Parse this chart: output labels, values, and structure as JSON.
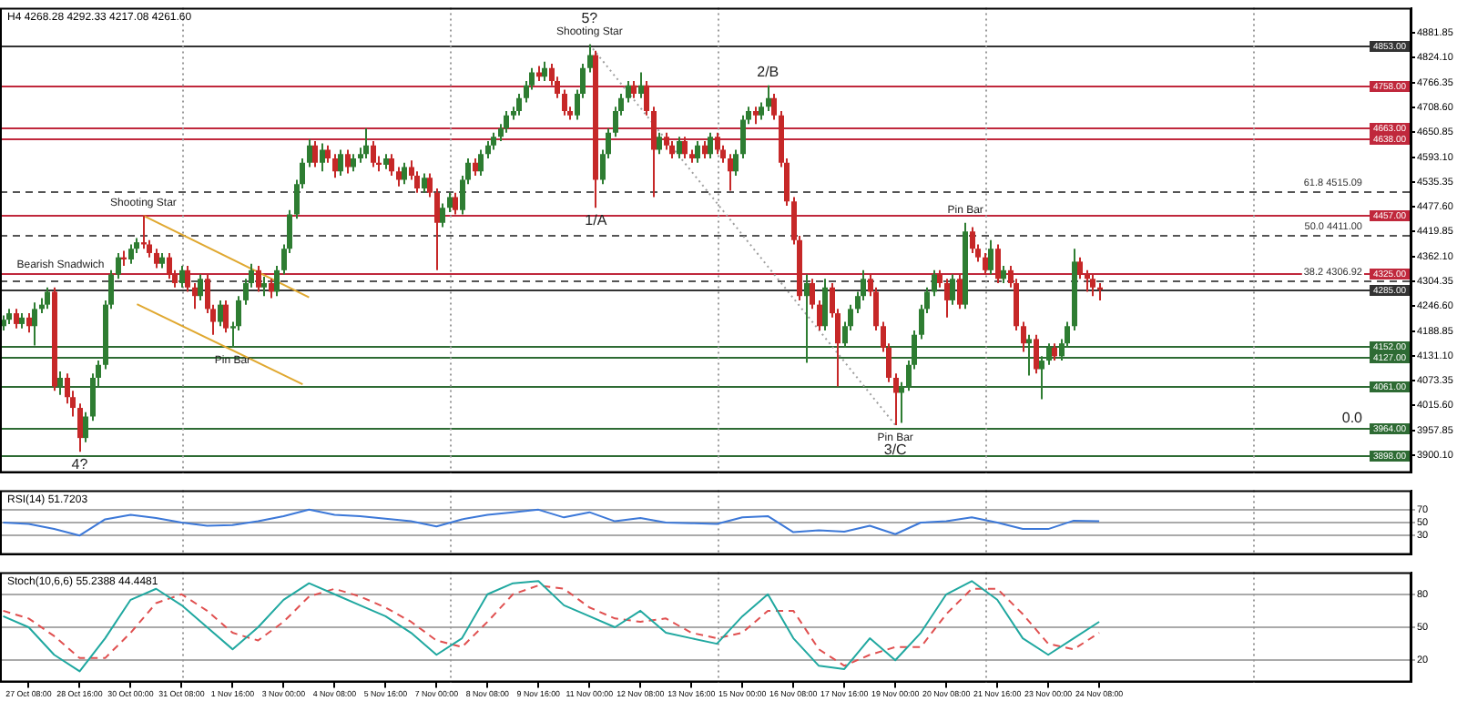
{
  "chart_data": [
    {
      "type": "candlestick",
      "title": "H4 4268.28 4292.33 4217.08 4261.60",
      "x": [
        "--10-26T16:00",
        "--10-26T20:00",
        "--10-27T00:00",
        "--10-27T04:00",
        "--10-27T08:00",
        "--10-27T12:00",
        "--10-27T16:00",
        "--10-27T20:00",
        "--10-28T00:00",
        "--10-28T04:00",
        "--10-28T08:00",
        "--10-28T12:00",
        "--10-28T16:00",
        "--10-28T20:00",
        "--10-29T00:00",
        "--10-29T04:00",
        "--10-29T08:00",
        "--10-29T12:00",
        "--10-29T16:00",
        "--10-29T20:00",
        "--10-30T00:00",
        "--10-30T04:00",
        "--10-30T08:00",
        "--10-30T12:00",
        "--10-30T16:00",
        "--10-30T20:00",
        "--10-31T00:00",
        "--10-31T04:00",
        "--10-31T08:00",
        "--10-31T12:00",
        "--10-31T16:00",
        "--10-31T20:00",
        "--11-01T00:00",
        "--11-01T04:00",
        "--11-01T08:00",
        "--11-01T12:00",
        "--11-01T16:00",
        "--11-01T20:00",
        "--11-02T00:00",
        "--11-02T04:00",
        "--11-02T08:00",
        "--11-02T12:00",
        "--11-02T16:00",
        "--11-02T20:00",
        "--11-03T00:00",
        "--11-03T04:00",
        "--11-03T08:00",
        "--11-03T12:00",
        "--11-03T16:00",
        "--11-03T20:00",
        "--11-04T00:00",
        "--11-04T04:00",
        "--11-04T08:00",
        "--11-04T12:00",
        "--11-04T16:00",
        "--11-04T20:00",
        "--11-05T00:00",
        "--11-05T04:00",
        "--11-05T08:00",
        "--11-05T12:00",
        "--11-05T16:00",
        "--11-05T20:00",
        "--11-06T00:00",
        "--11-06T04:00",
        "--11-06T08:00",
        "--11-06T12:00",
        "--11-06T16:00",
        "--11-06T20:00",
        "--11-07T00:00",
        "--11-07T04:00",
        "--11-07T08:00",
        "--11-07T12:00",
        "--11-07T16:00",
        "--11-07T20:00",
        "--11-08T00:00",
        "--11-08T04:00",
        "--11-08T08:00",
        "--11-08T12:00",
        "--11-08T16:00",
        "--11-08T20:00",
        "--11-09T00:00",
        "--11-09T04:00",
        "--11-09T08:00",
        "--11-09T12:00",
        "--11-09T16:00",
        "--11-09T20:00",
        "--11-10T00:00",
        "--11-10T04:00",
        "--11-10T08:00",
        "--11-10T12:00",
        "--11-10T16:00",
        "--11-10T20:00",
        "--11-11T00:00",
        "--11-11T04:00",
        "--11-11T08:00",
        "--11-11T12:00",
        "--11-11T16:00",
        "--11-11T20:00",
        "--11-12T00:00",
        "--11-12T04:00",
        "--11-12T08:00",
        "--11-12T12:00",
        "--11-12T16:00",
        "--11-12T20:00",
        "--11-13T00:00",
        "--11-13T04:00",
        "--11-13T08:00",
        "--11-13T12:00",
        "--11-13T16:00",
        "--11-13T20:00",
        "--11-14T00:00",
        "--11-14T04:00",
        "--11-14T08:00",
        "--11-14T12:00",
        "--11-14T16:00",
        "--11-14T20:00",
        "--11-15T00:00",
        "--11-15T04:00",
        "--11-15T08:00",
        "--11-15T12:00",
        "--11-15T16:00",
        "--11-15T20:00",
        "--11-16T00:00",
        "--11-16T04:00",
        "--11-16T08:00",
        "--11-16T12:00",
        "--11-16T16:00",
        "--11-16T20:00",
        "--11-17T00:00",
        "--11-17T04:00",
        "--11-17T08:00",
        "--11-17T12:00",
        "--11-17T16:00",
        "--11-17T20:00",
        "--11-18T00:00",
        "--11-18T04:00",
        "--11-18T08:00",
        "--11-18T12:00",
        "--11-18T16:00",
        "--11-18T20:00",
        "--11-19T00:00",
        "--11-19T04:00",
        "--11-19T08:00",
        "--11-19T12:00",
        "--11-19T16:00",
        "--11-19T20:00",
        "--11-20T00:00",
        "--11-20T04:00",
        "--11-20T08:00",
        "--11-20T12:00",
        "--11-20T16:00",
        "--11-20T20:00",
        "--11-21T00:00",
        "--11-21T04:00",
        "--11-21T08:00",
        "--11-21T12:00",
        "--11-21T16:00",
        "--11-21T20:00",
        "--11-22T00:00",
        "--11-22T04:00",
        "--11-22T08:00",
        "--11-22T12:00",
        "--11-22T16:00",
        "--11-22T20:00",
        "--11-23T00:00",
        "--11-23T04:00",
        "--11-23T08:00",
        "--11-23T12:00",
        "--11-23T16:00",
        "--11-23T20:00",
        "--11-24T00:00",
        "--11-24T04:00",
        "--11-24T08:00"
      ],
      "ohlc": [
        [
          4200,
          4225,
          4190,
          4215
        ],
        [
          4215,
          4240,
          4205,
          4230
        ],
        [
          4230,
          4240,
          4195,
          4205
        ],
        [
          4205,
          4230,
          4195,
          4220
        ],
        [
          4220,
          4230,
          4185,
          4200
        ],
        [
          4200,
          4255,
          4155,
          4240
        ],
        [
          4240,
          4265,
          4230,
          4250
        ],
        [
          4250,
          4290,
          4240,
          4280
        ],
        [
          4280,
          4290,
          4050,
          4060
        ],
        [
          4060,
          4095,
          4040,
          4080
        ],
        [
          4080,
          4090,
          4020,
          4035
        ],
        [
          4035,
          4050,
          3990,
          4010
        ],
        [
          4010,
          4020,
          3908,
          3940
        ],
        [
          3940,
          4000,
          3930,
          3990
        ],
        [
          3990,
          4090,
          3980,
          4080
        ],
        [
          4080,
          4120,
          4060,
          4110
        ],
        [
          4110,
          4260,
          4100,
          4250
        ],
        [
          4250,
          4330,
          4240,
          4320
        ],
        [
          4320,
          4370,
          4310,
          4360
        ],
        [
          4360,
          4375,
          4340,
          4355
        ],
        [
          4355,
          4390,
          4345,
          4380
        ],
        [
          4380,
          4405,
          4370,
          4395
        ],
        [
          4395,
          4457,
          4380,
          4390
        ],
        [
          4390,
          4400,
          4360,
          4370
        ],
        [
          4370,
          4380,
          4335,
          4345
        ],
        [
          4345,
          4370,
          4335,
          4360
        ],
        [
          4360,
          4370,
          4310,
          4320
        ],
        [
          4320,
          4330,
          4290,
          4300
        ],
        [
          4300,
          4340,
          4290,
          4330
        ],
        [
          4330,
          4340,
          4280,
          4290
        ],
        [
          4290,
          4300,
          4240,
          4270
        ],
        [
          4270,
          4320,
          4260,
          4310
        ],
        [
          4310,
          4320,
          4230,
          4240
        ],
        [
          4240,
          4250,
          4180,
          4210
        ],
        [
          4210,
          4260,
          4200,
          4250
        ],
        [
          4250,
          4260,
          4185,
          4195
        ],
        [
          4195,
          4210,
          4150,
          4200
        ],
        [
          4200,
          4270,
          4190,
          4260
        ],
        [
          4260,
          4310,
          4250,
          4300
        ],
        [
          4300,
          4345,
          4290,
          4330
        ],
        [
          4330,
          4340,
          4280,
          4290
        ],
        [
          4290,
          4315,
          4270,
          4300
        ],
        [
          4300,
          4310,
          4265,
          4280
        ],
        [
          4280,
          4340,
          4270,
          4330
        ],
        [
          4330,
          4390,
          4320,
          4380
        ],
        [
          4380,
          4470,
          4370,
          4460
        ],
        [
          4460,
          4540,
          4450,
          4530
        ],
        [
          4530,
          4590,
          4520,
          4580
        ],
        [
          4580,
          4635,
          4570,
          4620
        ],
        [
          4620,
          4630,
          4570,
          4580
        ],
        [
          4580,
          4625,
          4560,
          4610
        ],
        [
          4610,
          4620,
          4580,
          4590
        ],
        [
          4590,
          4600,
          4545,
          4560
        ],
        [
          4560,
          4610,
          4550,
          4600
        ],
        [
          4600,
          4610,
          4555,
          4570
        ],
        [
          4570,
          4600,
          4560,
          4590
        ],
        [
          4590,
          4615,
          4580,
          4600
        ],
        [
          4600,
          4660,
          4590,
          4620
        ],
        [
          4620,
          4630,
          4570,
          4580
        ],
        [
          4580,
          4595,
          4560,
          4575
        ],
        [
          4575,
          4600,
          4565,
          4590
        ],
        [
          4590,
          4600,
          4550,
          4560
        ],
        [
          4560,
          4570,
          4525,
          4540
        ],
        [
          4540,
          4580,
          4530,
          4570
        ],
        [
          4570,
          4585,
          4540,
          4550
        ],
        [
          4550,
          4560,
          4510,
          4520
        ],
        [
          4520,
          4555,
          4510,
          4545
        ],
        [
          4545,
          4555,
          4500,
          4510
        ],
        [
          4510,
          4520,
          4330,
          4440
        ],
        [
          4440,
          4485,
          4430,
          4475
        ],
        [
          4475,
          4510,
          4465,
          4500
        ],
        [
          4500,
          4510,
          4460,
          4470
        ],
        [
          4470,
          4550,
          4460,
          4540
        ],
        [
          4540,
          4590,
          4530,
          4580
        ],
        [
          4580,
          4590,
          4550,
          4560
        ],
        [
          4560,
          4610,
          4550,
          4600
        ],
        [
          4600,
          4630,
          4590,
          4620
        ],
        [
          4620,
          4650,
          4610,
          4640
        ],
        [
          4640,
          4670,
          4630,
          4660
        ],
        [
          4660,
          4700,
          4650,
          4690
        ],
        [
          4690,
          4710,
          4680,
          4700
        ],
        [
          4700,
          4740,
          4690,
          4730
        ],
        [
          4730,
          4770,
          4720,
          4760
        ],
        [
          4760,
          4800,
          4750,
          4790
        ],
        [
          4790,
          4805,
          4770,
          4780
        ],
        [
          4780,
          4815,
          4770,
          4800
        ],
        [
          4800,
          4810,
          4760,
          4770
        ],
        [
          4770,
          4780,
          4730,
          4740
        ],
        [
          4740,
          4750,
          4690,
          4700
        ],
        [
          4700,
          4710,
          4680,
          4690
        ],
        [
          4690,
          4750,
          4680,
          4740
        ],
        [
          4740,
          4810,
          4730,
          4800
        ],
        [
          4800,
          4855,
          4790,
          4830
        ],
        [
          4830,
          4840,
          4475,
          4540
        ],
        [
          4540,
          4610,
          4530,
          4600
        ],
        [
          4600,
          4660,
          4590,
          4650
        ],
        [
          4650,
          4710,
          4640,
          4700
        ],
        [
          4700,
          4740,
          4690,
          4730
        ],
        [
          4730,
          4770,
          4720,
          4760
        ],
        [
          4760,
          4770,
          4730,
          4740
        ],
        [
          4740,
          4790,
          4730,
          4760
        ],
        [
          4760,
          4770,
          4690,
          4700
        ],
        [
          4700,
          4710,
          4500,
          4610
        ],
        [
          4610,
          4650,
          4600,
          4640
        ],
        [
          4640,
          4650,
          4610,
          4620
        ],
        [
          4620,
          4630,
          4590,
          4600
        ],
        [
          4600,
          4640,
          4590,
          4630
        ],
        [
          4630,
          4640,
          4590,
          4600
        ],
        [
          4600,
          4610,
          4580,
          4590
        ],
        [
          4590,
          4630,
          4580,
          4620
        ],
        [
          4620,
          4630,
          4590,
          4600
        ],
        [
          4600,
          4650,
          4590,
          4640
        ],
        [
          4640,
          4650,
          4600,
          4610
        ],
        [
          4610,
          4620,
          4580,
          4590
        ],
        [
          4590,
          4600,
          4515,
          4560
        ],
        [
          4560,
          4610,
          4550,
          4600
        ],
        [
          4600,
          4690,
          4590,
          4680
        ],
        [
          4680,
          4710,
          4670,
          4700
        ],
        [
          4700,
          4710,
          4670,
          4690
        ],
        [
          4690,
          4720,
          4680,
          4710
        ],
        [
          4710,
          4760,
          4700,
          4730
        ],
        [
          4730,
          4740,
          4680,
          4690
        ],
        [
          4690,
          4700,
          4570,
          4580
        ],
        [
          4580,
          4590,
          4480,
          4490
        ],
        [
          4490,
          4500,
          4390,
          4400
        ],
        [
          4400,
          4410,
          4260,
          4270
        ],
        [
          4270,
          4320,
          4115,
          4300
        ],
        [
          4300,
          4310,
          4240,
          4250
        ],
        [
          4250,
          4260,
          4190,
          4200
        ],
        [
          4200,
          4310,
          4190,
          4290
        ],
        [
          4290,
          4300,
          4220,
          4230
        ],
        [
          4230,
          4240,
          4060,
          4160
        ],
        [
          4160,
          4210,
          4150,
          4200
        ],
        [
          4200,
          4250,
          4190,
          4240
        ],
        [
          4240,
          4280,
          4230,
          4270
        ],
        [
          4270,
          4330,
          4260,
          4310
        ],
        [
          4310,
          4320,
          4270,
          4280
        ],
        [
          4280,
          4290,
          4190,
          4200
        ],
        [
          4200,
          4210,
          4140,
          4150
        ],
        [
          4150,
          4160,
          4070,
          4080
        ],
        [
          4080,
          4090,
          3970,
          4045
        ],
        [
          4045,
          4070,
          3975,
          4060
        ],
        [
          4060,
          4120,
          4050,
          4110
        ],
        [
          4110,
          4190,
          4100,
          4180
        ],
        [
          4180,
          4250,
          4170,
          4240
        ],
        [
          4240,
          4290,
          4230,
          4280
        ],
        [
          4280,
          4330,
          4270,
          4320
        ],
        [
          4320,
          4330,
          4290,
          4300
        ],
        [
          4300,
          4310,
          4220,
          4260
        ],
        [
          4260,
          4320,
          4250,
          4310
        ],
        [
          4310,
          4320,
          4240,
          4250
        ],
        [
          4250,
          4440,
          4240,
          4420
        ],
        [
          4420,
          4430,
          4370,
          4380
        ],
        [
          4380,
          4390,
          4350,
          4360
        ],
        [
          4360,
          4370,
          4320,
          4330
        ],
        [
          4330,
          4400,
          4320,
          4380
        ],
        [
          4380,
          4390,
          4300,
          4310
        ],
        [
          4310,
          4340,
          4300,
          4330
        ],
        [
          4330,
          4340,
          4290,
          4300
        ],
        [
          4300,
          4310,
          4190,
          4200
        ],
        [
          4200,
          4210,
          4140,
          4160
        ],
        [
          4160,
          4180,
          4085,
          4170
        ],
        [
          4170,
          4180,
          4090,
          4100
        ],
        [
          4100,
          4130,
          4030,
          4120
        ],
        [
          4120,
          4160,
          4110,
          4150
        ],
        [
          4150,
          4160,
          4120,
          4130
        ],
        [
          4130,
          4170,
          4120,
          4160
        ],
        [
          4160,
          4210,
          4150,
          4200
        ],
        [
          4200,
          4380,
          4190,
          4350
        ],
        [
          4350,
          4360,
          4310,
          4320
        ],
        [
          4320,
          4330,
          4280,
          4310
        ],
        [
          4310,
          4320,
          4270,
          4290
        ],
        [
          4290,
          4300,
          4260,
          4285
        ]
      ],
      "colors": [
        "#2e7d32",
        "#2e7d32",
        "#c62828",
        "#2e7d32",
        "#c62828",
        "#2e7d32",
        "#2e7d32",
        "#2e7d32",
        "#c62828",
        "#2e7d32",
        "#c62828",
        "#c62828",
        "#c62828",
        "#2e7d32",
        "#2e7d32",
        "#2e7d32",
        "#2e7d32",
        "#2e7d32",
        "#2e7d32",
        "#c62828",
        "#2e7d32",
        "#2e7d32",
        "#c62828",
        "#c62828",
        "#c62828",
        "#2e7d32",
        "#c62828",
        "#c62828",
        "#2e7d32",
        "#c62828",
        "#c62828",
        "#2e7d32",
        "#c62828",
        "#c62828",
        "#2e7d32",
        "#c62828",
        "#2e7d32",
        "#2e7d32",
        "#2e7d32",
        "#2e7d32",
        "#c62828",
        "#2e7d32",
        "#c62828",
        "#2e7d32",
        "#2e7d32",
        "#2e7d32",
        "#2e7d32",
        "#2e7d32",
        "#2e7d32",
        "#c62828",
        "#2e7d32",
        "#c62828",
        "#c62828",
        "#2e7d32",
        "#c62828",
        "#2e7d32",
        "#2e7d32",
        "#2e7d32",
        "#c62828",
        "#c62828",
        "#2e7d32",
        "#c62828",
        "#c62828",
        "#2e7d32",
        "#c62828",
        "#c62828",
        "#2e7d32",
        "#c62828",
        "#c62828",
        "#2e7d32",
        "#2e7d32",
        "#c62828",
        "#2e7d32",
        "#2e7d32",
        "#c62828",
        "#2e7d32",
        "#2e7d32",
        "#2e7d32",
        "#2e7d32",
        "#2e7d32",
        "#2e7d32",
        "#2e7d32",
        "#2e7d32",
        "#2e7d32",
        "#c62828",
        "#2e7d32",
        "#c62828",
        "#c62828",
        "#c62828",
        "#c62828",
        "#2e7d32",
        "#2e7d32",
        "#2e7d32",
        "#c62828",
        "#2e7d32",
        "#2e7d32",
        "#2e7d32",
        "#2e7d32",
        "#2e7d32",
        "#c62828",
        "#2e7d32",
        "#c62828",
        "#c62828",
        "#2e7d32",
        "#c62828",
        "#c62828",
        "#2e7d32",
        "#c62828",
        "#c62828",
        "#2e7d32",
        "#c62828",
        "#2e7d32",
        "#c62828",
        "#c62828",
        "#c62828",
        "#2e7d32",
        "#2e7d32",
        "#2e7d32",
        "#c62828",
        "#2e7d32",
        "#2e7d32",
        "#c62828",
        "#c62828",
        "#c62828",
        "#c62828",
        "#c62828",
        "#2e7d32",
        "#c62828",
        "#c62828",
        "#2e7d32",
        "#c62828",
        "#c62828",
        "#2e7d32",
        "#2e7d32",
        "#2e7d32",
        "#2e7d32",
        "#c62828",
        "#c62828",
        "#c62828",
        "#c62828",
        "#c62828",
        "#2e7d32",
        "#2e7d32",
        "#2e7d32",
        "#2e7d32",
        "#2e7d32",
        "#2e7d32",
        "#c62828",
        "#c62828",
        "#2e7d32",
        "#c62828",
        "#2e7d32",
        "#c62828",
        "#c62828",
        "#c62828",
        "#2e7d32",
        "#c62828",
        "#2e7d32",
        "#c62828",
        "#c62828",
        "#c62828",
        "#2e7d32",
        "#c62828",
        "#2e7d32",
        "#2e7d32",
        "#c62828",
        "#2e7d32",
        "#2e7d32",
        "#2e7d32",
        "#c62828",
        "#c62828",
        "#c62828",
        "#c62828"
      ],
      "series": [
        {
          "type": "line",
          "x": [
            "--10-30T08:00",
            "--11-03T16:00"
          ],
          "values": [
            4457,
            4267
          ],
          "color": "#e0a830"
        },
        {
          "type": "line",
          "x": [
            "--10-30T04:00",
            "--11-03T12:00"
          ],
          "values": [
            4251,
            4065
          ],
          "color": "#e0a830"
        },
        {
          "type": "line",
          "x": [
            "--11-11T00:00",
            "--11-19T00:00"
          ],
          "values": [
            4855,
            3970
          ],
          "color": "#a0a0a0",
          "line_style": "dotted"
        }
      ],
      "xlim": [
        "--10-26T14:00",
        "--12-02T12:00"
      ],
      "ylim": [
        3859,
        4940
      ],
      "yticks": [
        {
          "value": 3900.1,
          "label": "3900.10"
        },
        {
          "value": 3957.85,
          "label": "3957.85"
        },
        {
          "value": 4015.6,
          "label": "4015.60"
        },
        {
          "value": 4073.35,
          "label": "4073.35"
        },
        {
          "value": 4131.1,
          "label": "4131.10"
        },
        {
          "value": 4188.85,
          "label": "4188.85"
        },
        {
          "value": 4246.6,
          "label": "4246.60"
        },
        {
          "value": 4304.35,
          "label": "4304.35"
        },
        {
          "value": 4362.1,
          "label": "4362.10"
        },
        {
          "value": 4419.85,
          "label": "4419.85"
        },
        {
          "value": 4477.6,
          "label": "4477.60"
        },
        {
          "value": 4535.35,
          "label": "4535.35"
        },
        {
          "value": 4593.1,
          "label": "4593.10"
        },
        {
          "value": 4650.85,
          "label": "4650.85"
        },
        {
          "value": 4708.6,
          "label": "4708.60"
        },
        {
          "value": 4766.35,
          "label": "4766.35"
        },
        {
          "value": 4824.1,
          "label": "4824.10"
        },
        {
          "value": 4881.85,
          "label": "4881.85"
        }
      ],
      "tick_labels": "y",
      "ref_lines": [
        {
          "axis": "y",
          "value": 4853,
          "label": "4853.00",
          "color": "#333333"
        },
        {
          "axis": "y",
          "value": 4758,
          "label": "4758.00",
          "color": "#c0283c"
        },
        {
          "axis": "y",
          "value": 4663,
          "label": "4663.00",
          "color": "#c0283c"
        },
        {
          "axis": "y",
          "value": 4638,
          "label": "4638.00",
          "color": "#c0283c"
        },
        {
          "axis": "y",
          "value": 4457,
          "label": "4457.00",
          "color": "#c0283c"
        },
        {
          "axis": "y",
          "value": 4325,
          "label": "4325.00",
          "color": "#c0283c"
        },
        {
          "axis": "y",
          "value": 4285,
          "label": "4285.00",
          "color": "#333333"
        },
        {
          "axis": "y",
          "value": 4152,
          "label": "4152.00",
          "color": "#2e6b34"
        },
        {
          "axis": "y",
          "value": 4127,
          "label": "4127.00",
          "color": "#2e6b34"
        },
        {
          "axis": "y",
          "value": 4061,
          "label": "4061.00",
          "color": "#2e6b34"
        },
        {
          "axis": "y",
          "value": 3964,
          "label": "3964.00",
          "color": "#2e6b34"
        },
        {
          "axis": "y",
          "value": 3898,
          "label": "3898.00",
          "color": "#2e6b34"
        },
        {
          "axis": "y",
          "value": 4515.09,
          "label": "61.8 4515.09",
          "color": "#555555",
          "line_style": "dashed"
        },
        {
          "axis": "y",
          "value": 4411,
          "label": "50.0 4411.00",
          "color": "#555555",
          "line_style": "dashed"
        },
        {
          "axis": "y",
          "value": 4306.92,
          "label": "38.2 4306.92",
          "color": "#555555",
          "line_style": "dashed"
        },
        {
          "axis": "x",
          "value": "--10-31T08:00",
          "color": "#999999",
          "line_style": "dotted"
        },
        {
          "axis": "x",
          "value": "--11-07T08:00",
          "color": "#999999",
          "line_style": "dotted"
        },
        {
          "axis": "x",
          "value": "--11-14T08:00",
          "color": "#999999",
          "line_style": "dotted"
        },
        {
          "axis": "x",
          "value": "--11-21T08:00",
          "color": "#999999",
          "line_style": "dotted"
        },
        {
          "axis": "x",
          "value": "--11-28T08:00",
          "color": "#999999",
          "line_style": "dotted"
        }
      ],
      "annotations": [
        {
          "text": "Bearish Snadwich",
          "x": "--10-28T04:00",
          "y": 4342
        },
        {
          "text": "Shooting Star",
          "x": "--10-30T08:00",
          "y": 4457
        },
        {
          "text": "Pin Bar",
          "x": "--11-01T16:00",
          "y": 4150
        },
        {
          "text": "4?",
          "x": "--10-28T16:00",
          "y": 3908
        },
        {
          "text": "Shooting Star",
          "x": "--11-11T00:00",
          "y": 4855
        },
        {
          "text": "5?",
          "x": "--11-11T00:00",
          "y": 4855
        },
        {
          "text": "1/A",
          "x": "--11-11T04:00",
          "y": 4475
        },
        {
          "text": "2/B",
          "x": "--11-15T16:00",
          "y": 4760
        },
        {
          "text": "Pin Bar",
          "x": "--11-20T20:00",
          "y": 4440
        },
        {
          "text": "Pin Bar",
          "x": "--11-19T00:00",
          "y": 3970
        },
        {
          "text": "3/C",
          "x": "--11-19T00:00",
          "y": 3970
        },
        {
          "text": "0.0",
          "y": 3964
        }
      ]
    },
    {
      "type": "line",
      "title": "RSI(14) 51.7203",
      "x": [
        "--10-26T16:00",
        "--10-27T08:00",
        "--10-28T00:00",
        "--10-28T16:00",
        "--10-29T08:00",
        "--10-30T00:00",
        "--10-30T16:00",
        "--10-31T08:00",
        "--11-01T00:00",
        "--11-01T16:00",
        "--11-02T08:00",
        "--11-03T00:00",
        "--11-03T16:00",
        "--11-04T08:00",
        "--11-05T00:00",
        "--11-05T16:00",
        "--11-06T08:00",
        "--11-07T00:00",
        "--11-07T16:00",
        "--11-08T08:00",
        "--11-09T00:00",
        "--11-09T16:00",
        "--11-10T08:00",
        "--11-11T00:00",
        "--11-11T16:00",
        "--11-12T08:00",
        "--11-13T00:00",
        "--11-13T16:00",
        "--11-14T08:00",
        "--11-15T00:00",
        "--11-15T16:00",
        "--11-16T08:00",
        "--11-17T00:00",
        "--11-17T16:00",
        "--11-18T08:00",
        "--11-19T00:00",
        "--11-19T16:00",
        "--11-20T08:00",
        "--11-21T00:00",
        "--11-21T16:00",
        "--11-22T08:00",
        "--11-23T00:00",
        "--11-23T16:00",
        "--11-24T08:00"
      ],
      "series": [
        {
          "color": "#3c78d8",
          "values": [
            50,
            48,
            40,
            30,
            55,
            62,
            57,
            50,
            45,
            46,
            52,
            60,
            70,
            62,
            60,
            56,
            52,
            44,
            55,
            62,
            66,
            70,
            58,
            66,
            52,
            57,
            50,
            49,
            48,
            58,
            60,
            35,
            38,
            36,
            45,
            32,
            50,
            52,
            58,
            50,
            40,
            40,
            53,
            52
          ]
        }
      ],
      "xlim": [
        "--10-26T14:00",
        "--12-02T12:00"
      ],
      "ylim": [
        0,
        100
      ],
      "yticks": [
        30,
        50,
        70
      ],
      "grid": "y",
      "tick_labels": "y",
      "ref_lines": [
        {
          "axis": "x",
          "value": "--10-31T08:00",
          "color": "#999999",
          "line_style": "dotted"
        },
        {
          "axis": "x",
          "value": "--11-07T08:00",
          "color": "#999999",
          "line_style": "dotted"
        },
        {
          "axis": "x",
          "value": "--11-14T08:00",
          "color": "#999999",
          "line_style": "dotted"
        },
        {
          "axis": "x",
          "value": "--11-21T08:00",
          "color": "#999999",
          "line_style": "dotted"
        },
        {
          "axis": "x",
          "value": "--11-28T08:00",
          "color": "#999999",
          "line_style": "dotted"
        }
      ]
    },
    {
      "type": "line",
      "title": "Stoch(10,6,6) 55.2388 44.4481",
      "x": [
        "--10-26T16:00",
        "--10-27T08:00",
        "--10-28T00:00",
        "--10-28T16:00",
        "--10-29T08:00",
        "--10-30T00:00",
        "--10-30T16:00",
        "--10-31T08:00",
        "--11-01T00:00",
        "--11-01T16:00",
        "--11-02T08:00",
        "--11-03T00:00",
        "--11-03T16:00",
        "--11-04T08:00",
        "--11-05T00:00",
        "--11-05T16:00",
        "--11-06T08:00",
        "--11-07T00:00",
        "--11-07T16:00",
        "--11-08T08:00",
        "--11-09T00:00",
        "--11-09T16:00",
        "--11-10T08:00",
        "--11-11T00:00",
        "--11-11T16:00",
        "--11-12T08:00",
        "--11-13T00:00",
        "--11-13T16:00",
        "--11-14T08:00",
        "--11-15T00:00",
        "--11-15T16:00",
        "--11-16T08:00",
        "--11-17T00:00",
        "--11-17T16:00",
        "--11-18T08:00",
        "--11-19T00:00",
        "--11-19T16:00",
        "--11-20T08:00",
        "--11-21T00:00",
        "--11-21T16:00",
        "--11-22T08:00",
        "--11-23T00:00",
        "--11-23T16:00",
        "--11-24T08:00"
      ],
      "series": [
        {
          "color": "#20a8a0",
          "values": [
            60,
            50,
            25,
            10,
            40,
            75,
            85,
            70,
            50,
            30,
            50,
            75,
            90,
            80,
            70,
            60,
            45,
            25,
            40,
            80,
            90,
            92,
            70,
            60,
            50,
            65,
            45,
            40,
            35,
            60,
            80,
            40,
            15,
            12,
            40,
            20,
            45,
            80,
            92,
            75,
            40,
            25,
            40,
            55
          ]
        },
        {
          "color": "#e05050",
          "line_style": "dashed",
          "values": [
            65,
            58,
            42,
            22,
            22,
            45,
            72,
            80,
            65,
            45,
            38,
            55,
            78,
            85,
            78,
            68,
            55,
            38,
            32,
            55,
            80,
            88,
            85,
            68,
            58,
            55,
            58,
            45,
            40,
            45,
            65,
            65,
            30,
            15,
            25,
            32,
            32,
            62,
            85,
            85,
            62,
            35,
            30,
            45
          ]
        }
      ],
      "xlim": [
        "--10-26T14:00",
        "--12-02T12:00"
      ],
      "xticks": [
        {
          "value": "--10-27T08:00",
          "label": "27 Oct 08:00"
        },
        {
          "value": "--10-28T16:00",
          "label": "28 Oct 16:00"
        },
        {
          "value": "--10-30T00:00",
          "label": "30 Oct 00:00"
        },
        {
          "value": "--10-31T08:00",
          "label": "31 Oct 08:00"
        },
        {
          "value": "--11-01T16:00",
          "label": "1 Nov 16:00"
        },
        {
          "value": "--11-03T00:00",
          "label": "3 Nov 00:00"
        },
        {
          "value": "--11-04T08:00",
          "label": "4 Nov 08:00"
        },
        {
          "value": "--11-05T16:00",
          "label": "5 Nov 16:00"
        },
        {
          "value": "--11-07T00:00",
          "label": "7 Nov 00:00"
        },
        {
          "value": "--11-08T08:00",
          "label": "8 Nov 08:00"
        },
        {
          "value": "--11-09T16:00",
          "label": "9 Nov 16:00"
        },
        {
          "value": "--11-11T00:00",
          "label": "11 Nov 00:00"
        },
        {
          "value": "--11-12T08:00",
          "label": "12 Nov 08:00"
        },
        {
          "value": "--11-13T16:00",
          "label": "13 Nov 16:00"
        },
        {
          "value": "--11-15T00:00",
          "label": "15 Nov 00:00"
        },
        {
          "value": "--11-16T08:00",
          "label": "16 Nov 08:00"
        },
        {
          "value": "--11-17T16:00",
          "label": "17 Nov 16:00"
        },
        {
          "value": "--11-19T00:00",
          "label": "19 Nov 00:00"
        },
        {
          "value": "--11-20T08:00",
          "label": "20 Nov 08:00"
        },
        {
          "value": "--11-21T16:00",
          "label": "21 Nov 16:00"
        },
        {
          "value": "--11-23T00:00",
          "label": "23 Nov 00:00"
        },
        {
          "value": "--11-24T08:00",
          "label": "24 Nov 08:00"
        }
      ],
      "ylim": [
        0,
        100
      ],
      "yticks": [
        20,
        50,
        80
      ],
      "grid": "y",
      "ref_lines": [
        {
          "axis": "x",
          "value": "--10-31T08:00",
          "color": "#999999",
          "line_style": "dotted"
        },
        {
          "axis": "x",
          "value": "--11-07T08:00",
          "color": "#999999",
          "line_style": "dotted"
        },
        {
          "axis": "x",
          "value": "--11-14T08:00",
          "color": "#999999",
          "line_style": "dotted"
        },
        {
          "axis": "x",
          "value": "--11-21T08:00",
          "color": "#999999",
          "line_style": "dotted"
        },
        {
          "axis": "x",
          "value": "--11-28T08:00",
          "color": "#999999",
          "line_style": "dotted"
        }
      ]
    }
  ]
}
